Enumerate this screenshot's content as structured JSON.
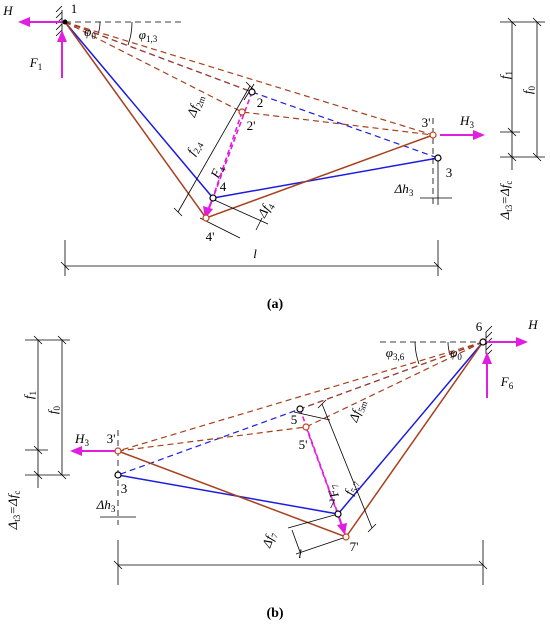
{
  "panels": [
    {
      "caption": "(a)",
      "labels": [
        [
          "H"
        ],
        [
          "1"
        ],
        [
          "φ",
          "0"
        ],
        [
          "φ",
          "1,3"
        ],
        [
          "F",
          "1"
        ],
        [
          "2"
        ],
        [
          "2'"
        ],
        [
          "Δf",
          "2m"
        ],
        [
          "f",
          "2,4"
        ],
        [
          "F",
          "4"
        ],
        [
          "4"
        ],
        [
          "4'"
        ],
        [
          "Δf",
          "4"
        ],
        [
          "3'"
        ],
        [
          "H",
          "3"
        ],
        [
          "3"
        ],
        [
          "Δh",
          "3"
        ],
        [
          "f",
          "1"
        ],
        [
          "f",
          "0"
        ],
        [
          "Δ",
          "t3",
          "=Δf",
          "c"
        ],
        [
          "l"
        ]
      ]
    },
    {
      "caption": "(b)",
      "labels": [
        [
          "H"
        ],
        [
          "6"
        ],
        [
          "φ",
          "3,6"
        ],
        [
          "φ",
          "0"
        ],
        [
          "F",
          "6"
        ],
        [
          "5"
        ],
        [
          "5'"
        ],
        [
          "Δf",
          "5m"
        ],
        [
          "f",
          "5,7"
        ],
        [
          "F",
          "7"
        ],
        [
          "7"
        ],
        [
          "7'"
        ],
        [
          "Δf",
          "7"
        ],
        [
          "3'"
        ],
        [
          "H",
          "3"
        ],
        [
          "3"
        ],
        [
          "Δh",
          "3"
        ],
        [
          "f",
          "1"
        ],
        [
          "f",
          "0"
        ],
        [
          "Δ",
          "t3",
          "=Δf",
          "c"
        ],
        [
          "l"
        ]
      ]
    }
  ]
}
